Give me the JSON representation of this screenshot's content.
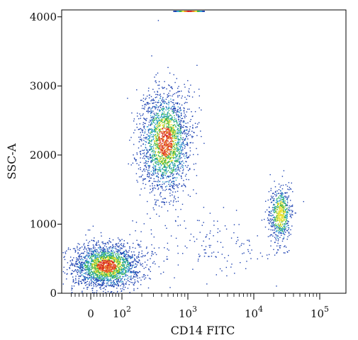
{
  "chart_data": {
    "type": "scatter",
    "style": "flow-cytometry-density-dot-plot",
    "title": "",
    "xlabel": "CD14 FITC",
    "ylabel": "SSC-A",
    "x_scale": "biexponential",
    "xlim": [
      -60,
      200000
    ],
    "ylim": [
      0,
      4100
    ],
    "grid": false,
    "x_ticks": [
      {
        "value": 0,
        "label": "0"
      },
      {
        "value": 100,
        "label": "10",
        "exp": "2"
      },
      {
        "value": 1000,
        "label": "10",
        "exp": "3"
      },
      {
        "value": 10000,
        "label": "10",
        "exp": "4"
      },
      {
        "value": 100000,
        "label": "10",
        "exp": "5"
      }
    ],
    "y_ticks": [
      {
        "value": 0,
        "label": "0"
      },
      {
        "value": 1000,
        "label": "1000"
      },
      {
        "value": 2000,
        "label": "2000"
      },
      {
        "value": 3000,
        "label": "3000"
      },
      {
        "value": 4000,
        "label": "4000"
      }
    ],
    "density_colors": [
      "#1a3fb0",
      "#2a9fd0",
      "#33b24a",
      "#e8e030",
      "#e87820",
      "#d82020"
    ],
    "populations": [
      {
        "center_x": 50,
        "center_y": 400,
        "x_range": [
          -40,
          400
        ],
        "y_range": [
          100,
          900
        ],
        "relative_density": "high"
      },
      {
        "center_x": 450,
        "center_y": 2200,
        "x_range": [
          150,
          1400
        ],
        "y_range": [
          1300,
          3200
        ],
        "relative_density": "high"
      },
      {
        "center_x": 25000,
        "center_y": 1150,
        "x_range": [
          15000,
          40000
        ],
        "y_range": [
          650,
          1700
        ],
        "relative_density": "medium"
      },
      {
        "center_x": 1500,
        "center_y": 700,
        "x_range": [
          300,
          6000
        ],
        "y_range": [
          200,
          1100
        ],
        "relative_density": "low"
      },
      {
        "center_x": 1000,
        "center_y": 4050,
        "x_range": [
          600,
          1800
        ],
        "y_range": [
          4030,
          4080
        ],
        "relative_density": "saturated-edge"
      }
    ]
  }
}
